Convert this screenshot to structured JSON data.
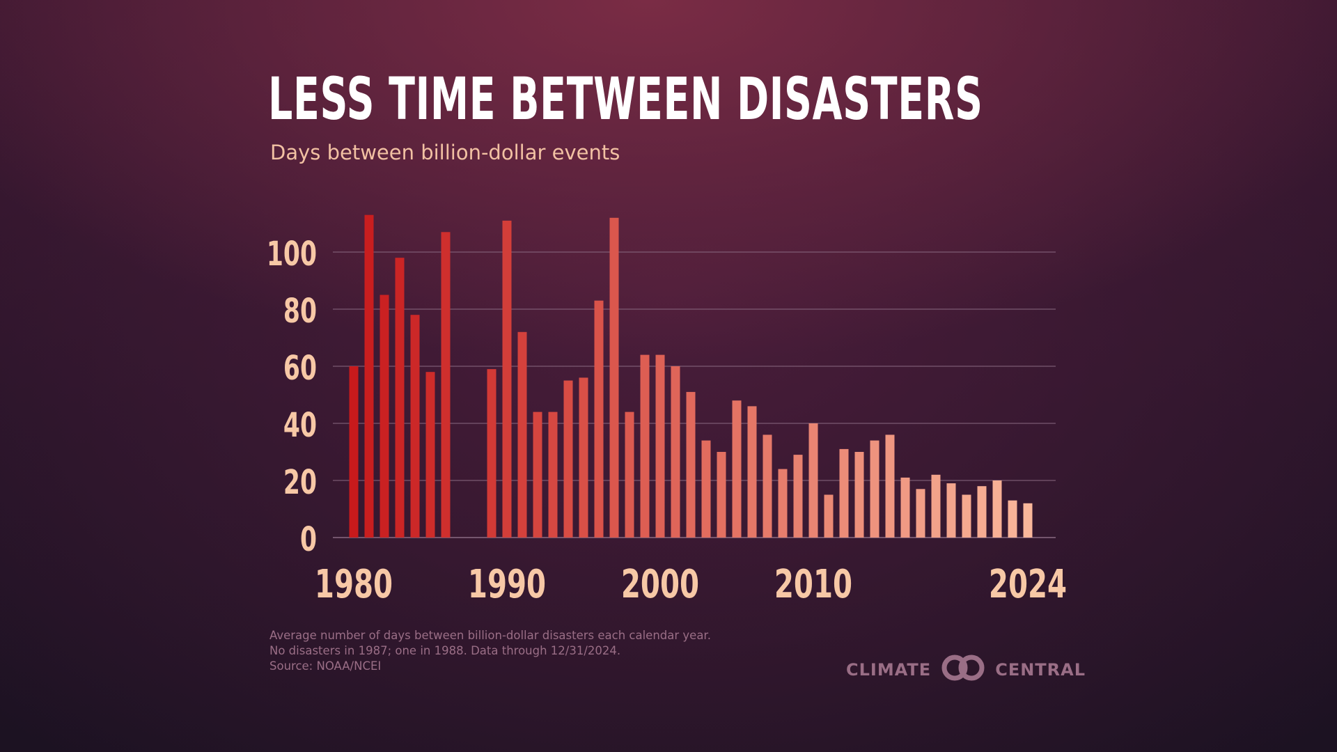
{
  "title": "LESS TIME BETWEEN DISASTERS",
  "subtitle": "Days between billion-dollar events",
  "notes": [
    "Average number of days between billion-dollar disasters each calendar year.",
    "No disasters in 1987; one in 1988. Data through 12/31/2024.",
    "Source: NOAA/NCEI"
  ],
  "logo": {
    "left_text": "CLIMATE",
    "right_text": "CENTRAL",
    "icon": "linked-rings-icon"
  },
  "colors": {
    "bar_start": "#c81a1c",
    "bar_end": "#f9b79b",
    "tick_text": "#f7c8a6",
    "grid": "#8a6a82"
  },
  "chart_data": {
    "type": "bar",
    "title": "LESS TIME BETWEEN DISASTERS",
    "subtitle": "Days between billion-dollar events",
    "xlabel": "",
    "ylabel": "",
    "ylim": [
      0,
      112
    ],
    "yticks": [
      0,
      20,
      40,
      60,
      80,
      100
    ],
    "xtick_labels": [
      "1980",
      "1990",
      "2000",
      "2010",
      "2024"
    ],
    "grid": "horizontal",
    "legend": "none",
    "x": [
      1980,
      1981,
      1982,
      1983,
      1984,
      1985,
      1986,
      1987,
      1988,
      1989,
      1990,
      1991,
      1992,
      1993,
      1994,
      1995,
      1996,
      1997,
      1998,
      1999,
      2000,
      2001,
      2002,
      2003,
      2004,
      2005,
      2006,
      2007,
      2008,
      2009,
      2010,
      2011,
      2012,
      2013,
      2014,
      2015,
      2016,
      2017,
      2018,
      2019,
      2020,
      2021,
      2022,
      2023,
      2024
    ],
    "values": [
      60,
      113,
      85,
      98,
      78,
      58,
      107,
      null,
      null,
      59,
      111,
      72,
      44,
      44,
      55,
      56,
      83,
      112,
      44,
      64,
      64,
      60,
      51,
      34,
      30,
      48,
      46,
      36,
      24,
      29,
      40,
      15,
      31,
      30,
      34,
      36,
      21,
      17,
      22,
      19,
      15,
      18,
      20,
      13,
      12
    ]
  }
}
